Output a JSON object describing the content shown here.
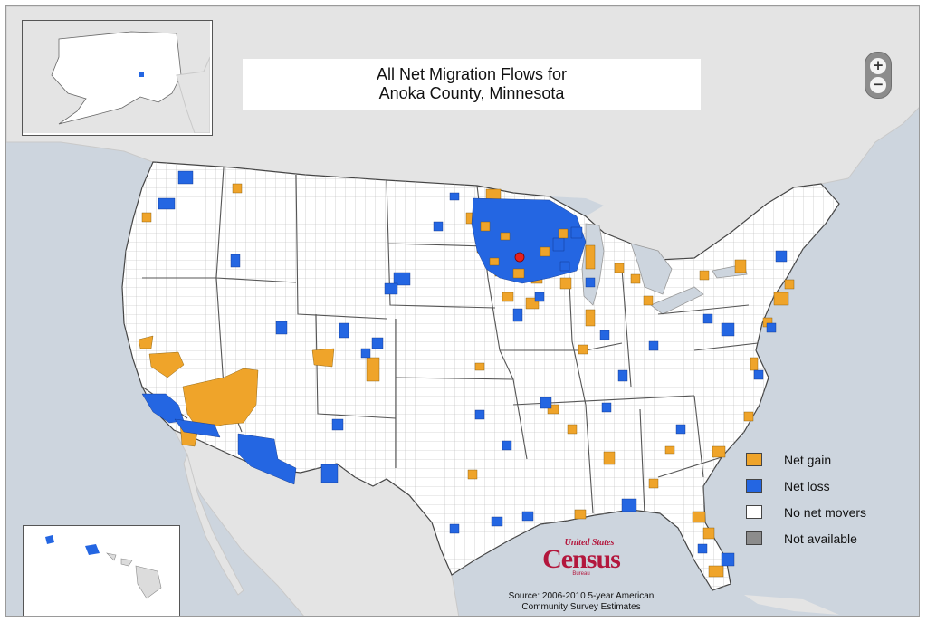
{
  "title": {
    "line1": "All Net Migration Flows for",
    "line2": "Anoka County, Minnesota"
  },
  "zoom": {
    "in_label": "+",
    "out_label": "−"
  },
  "legend": [
    {
      "label": "Net gain",
      "color": "#efa42a"
    },
    {
      "label": "Net loss",
      "color": "#2466e2"
    },
    {
      "label": "No net movers",
      "color": "#ffffff"
    },
    {
      "label": "Not available",
      "color": "#8c8c8c"
    }
  ],
  "logo": {
    "top": "United States",
    "main": "Census",
    "bottom": "Bureau"
  },
  "source": {
    "line1": "Source: 2006-2010 5-year American",
    "line2": "Community Survey Estimates"
  },
  "colors": {
    "water": "#cdd5de",
    "land_foreign": "#e4e4e4",
    "land_us": "#ffffff",
    "county_border": "#b5b5b5",
    "state_border": "#555555",
    "gain": "#efa42a",
    "loss": "#2466e2",
    "origin": "#e8211c"
  },
  "origin_county": "Anoka County, Minnesota"
}
